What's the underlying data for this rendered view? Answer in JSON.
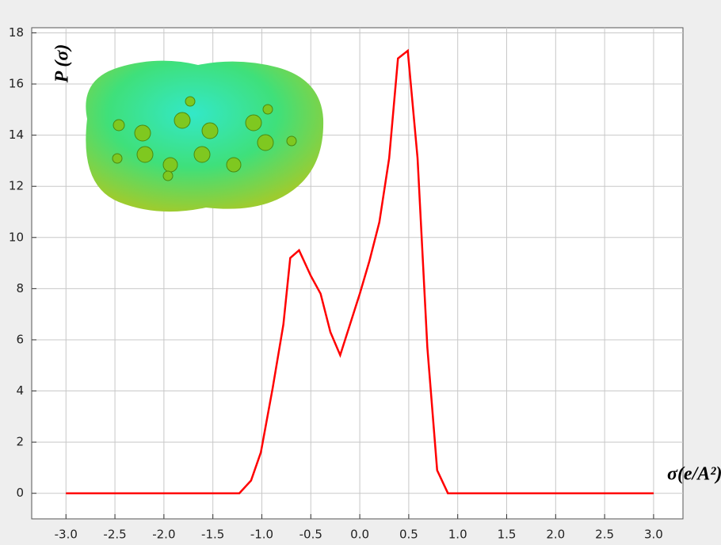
{
  "chart_data": {
    "type": "line",
    "y_label": "P (σ)",
    "x_label": "σ(e/A²)",
    "x": [
      -3.0,
      -1.23,
      -1.11,
      -1.01,
      -0.89,
      -0.78,
      -0.71,
      -0.62,
      -0.5,
      -0.4,
      -0.3,
      -0.2,
      -0.1,
      0.0,
      0.1,
      0.2,
      0.3,
      0.39,
      0.49,
      0.59,
      0.69,
      0.79,
      0.9,
      3.0
    ],
    "series": [
      {
        "color": "#ff0000",
        "values": [
          0,
          0,
          0.5,
          1.6,
          4.1,
          6.6,
          9.2,
          9.5,
          8.5,
          7.8,
          6.3,
          5.4,
          6.6,
          7.8,
          9.1,
          10.6,
          13.1,
          17.0,
          17.3,
          13.1,
          5.7,
          0.9,
          0,
          0
        ]
      }
    ],
    "xlim": [
      -3.35,
      3.3
    ],
    "ylim": [
      -1,
      18.2
    ],
    "xticks": [
      {
        "value": -3,
        "label": "-3.0"
      },
      {
        "value": -2.5,
        "label": "-2.5"
      },
      {
        "value": -2,
        "label": "-2.0"
      },
      {
        "value": -1.5,
        "label": "-1.5"
      },
      {
        "value": -1,
        "label": "-1.0"
      },
      {
        "value": -0.5,
        "label": "-0.5"
      },
      {
        "value": 0,
        "label": "0.0"
      },
      {
        "value": 0.5,
        "label": "0.5"
      },
      {
        "value": 1,
        "label": "1.0"
      },
      {
        "value": 1.5,
        "label": "1.5"
      },
      {
        "value": 2,
        "label": "2.0"
      },
      {
        "value": 2.5,
        "label": "2.5"
      },
      {
        "value": 3,
        "label": "3.0"
      }
    ],
    "yticks": [
      0,
      2,
      4,
      6,
      8,
      10,
      12,
      14,
      16,
      18
    ],
    "grid": true
  }
}
